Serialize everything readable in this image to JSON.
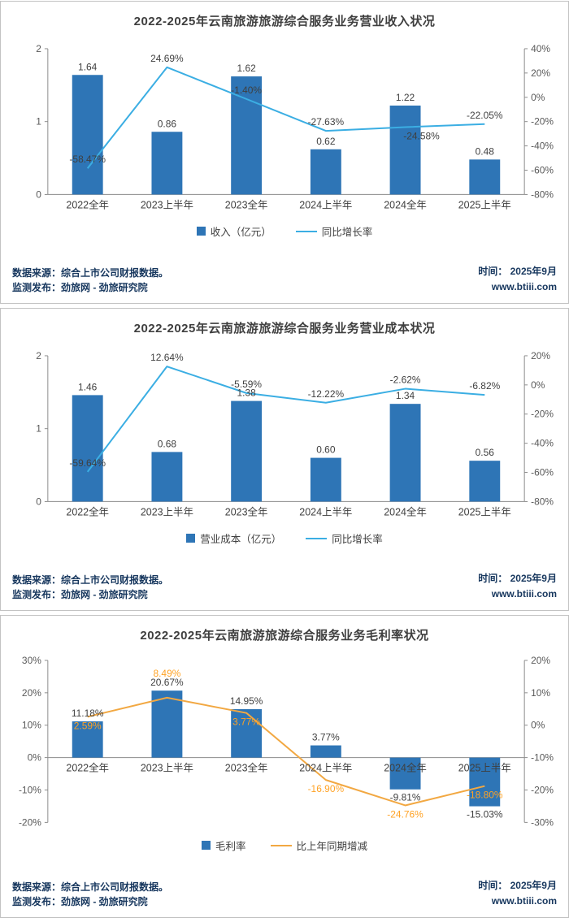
{
  "colors": {
    "bar_blue": "#2E75B6",
    "growth_line_blue": "#3BAEE3",
    "growth_line_orange": "#F2A842",
    "orange_label": "#FFA224",
    "axis_text": "#595959",
    "label_text": "#3F3F3F",
    "footer_text": "#17375E"
  },
  "footer": {
    "source_line1": "数据来源：综合上市公司财报数据。",
    "source_line2": "监测发布：劲旅网 - 劲旅研究院",
    "time": "时间：  2025年9月",
    "site": "www.btiii.com"
  },
  "chart_data": [
    {
      "type": "bar+line",
      "title": "2022-2025年云南旅游旅游综合服务业务营业收入状况",
      "categories": [
        "2022全年",
        "2023上半年",
        "2023全年",
        "2024上半年",
        "2024全年",
        "2025上半年"
      ],
      "bars": {
        "name": "收入（亿元）",
        "color": "#2E75B6",
        "values": [
          1.64,
          0.86,
          1.62,
          0.62,
          1.22,
          0.48
        ],
        "labels": [
          "1.64",
          "0.86",
          "1.62",
          "0.62",
          "1.22",
          "0.48"
        ]
      },
      "line": {
        "name": "同比增长率",
        "color": "#3BAEE3",
        "label_color": "#3F3F3F",
        "values": [
          -58.47,
          24.69,
          -1.4,
          -27.63,
          -24.58,
          -22.05
        ],
        "labels": [
          "-58.47%",
          "24.69%",
          "-1.40%",
          "-27.63%",
          "-24.58%",
          "-22.05%"
        ],
        "label_side": [
          "above",
          "above",
          "above",
          "above",
          "below-right",
          "above"
        ]
      },
      "left_axis": {
        "min": 0,
        "max": 2,
        "tick_values": [
          2,
          1,
          0
        ],
        "tick_labels": [
          "2",
          "1",
          "0"
        ]
      },
      "right_axis": {
        "min": -80,
        "max": 40,
        "tick_values": [
          40,
          20,
          0,
          -20,
          -40,
          -60,
          -80
        ],
        "tick_labels": [
          "40%",
          "20%",
          "0%",
          "-20%",
          "-40%",
          "-60%",
          "-80%"
        ]
      },
      "grid": false,
      "legend_position": "bottom"
    },
    {
      "type": "bar+line",
      "title": "2022-2025年云南旅游旅游综合服务业务营业成本状况",
      "categories": [
        "2022全年",
        "2023上半年",
        "2023全年",
        "2024上半年",
        "2024全年",
        "2025上半年"
      ],
      "bars": {
        "name": "营业成本（亿元）",
        "color": "#2E75B6",
        "values": [
          1.46,
          0.68,
          1.38,
          0.6,
          1.34,
          0.56
        ],
        "labels": [
          "1.46",
          "0.68",
          "1.38",
          "0.60",
          "1.34",
          "0.56"
        ]
      },
      "line": {
        "name": "同比增长率",
        "color": "#3BAEE3",
        "label_color": "#3F3F3F",
        "values": [
          -59.64,
          12.64,
          -5.59,
          -12.22,
          -2.62,
          -6.82
        ],
        "labels": [
          "-59.64%",
          "12.64%",
          "-5.59%",
          "-12.22%",
          "-2.62%",
          "-6.82%"
        ],
        "label_side": [
          "above",
          "above",
          "above",
          "above",
          "above",
          "above"
        ]
      },
      "left_axis": {
        "min": 0,
        "max": 2,
        "tick_values": [
          2,
          1,
          0
        ],
        "tick_labels": [
          "2",
          "1",
          "0"
        ]
      },
      "right_axis": {
        "min": -80,
        "max": 20,
        "tick_values": [
          20,
          0,
          -20,
          -40,
          -60,
          -80
        ],
        "tick_labels": [
          "20%",
          "0%",
          "-20%",
          "-40%",
          "-60%",
          "-80%"
        ]
      },
      "grid": false,
      "legend_position": "bottom"
    },
    {
      "type": "bar+line",
      "title": "2022-2025年云南旅游旅游综合服务业务毛利率状况",
      "categories": [
        "2022全年",
        "2023上半年",
        "2023全年",
        "2024上半年",
        "2024全年",
        "2025上半年"
      ],
      "bars": {
        "name": "毛利率",
        "color": "#2E75B6",
        "values": [
          11.18,
          20.67,
          14.95,
          3.77,
          -9.81,
          -15.03
        ],
        "labels": [
          "11.18%",
          "20.67%",
          "14.95%",
          "3.77%",
          "-9.81%",
          "-15.03%"
        ]
      },
      "line": {
        "name": "比上年同期增减",
        "color": "#F2A842",
        "label_color": "#FFA224",
        "values": [
          2.59,
          8.49,
          3.77,
          -16.9,
          -24.76,
          -18.8
        ],
        "labels": [
          "2.59%",
          "8.49%",
          "3.77%",
          "-16.90%",
          "-24.76%",
          "-18.80%"
        ],
        "label_side": [
          "below",
          "far-above",
          "below",
          "below",
          "below",
          "below"
        ]
      },
      "left_axis": {
        "min": -20,
        "max": 30,
        "tick_values": [
          30,
          20,
          10,
          0,
          -10,
          -20
        ],
        "tick_labels": [
          "30%",
          "20%",
          "10%",
          "0%",
          "-10%",
          "-20%"
        ]
      },
      "right_axis": {
        "min": -30,
        "max": 20,
        "tick_values": [
          20,
          10,
          0,
          -10,
          -20,
          -30
        ],
        "tick_labels": [
          "20%",
          "10%",
          "0%",
          "-10%",
          "-20%",
          "-30%"
        ]
      },
      "grid": false,
      "legend_position": "bottom"
    }
  ]
}
